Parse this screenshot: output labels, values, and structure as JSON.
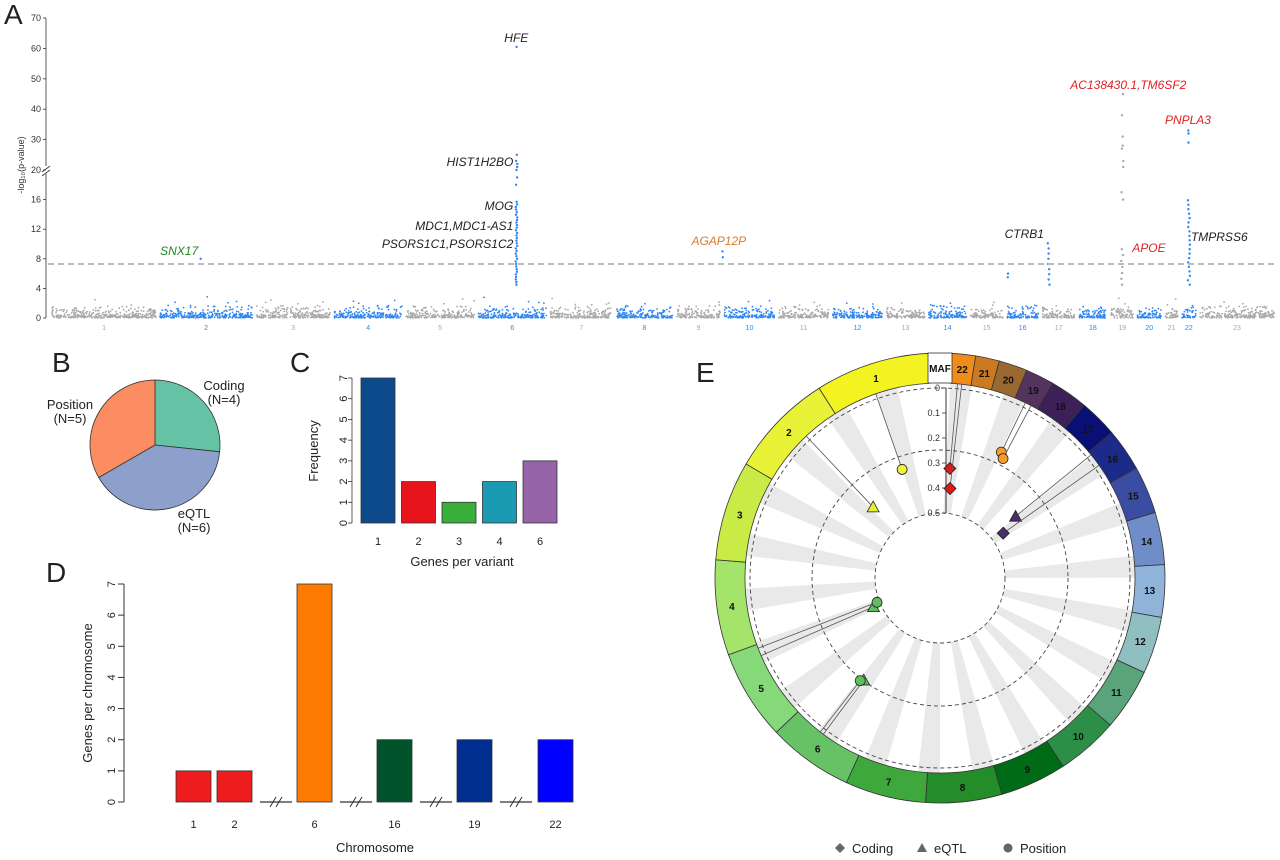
{
  "panels": {
    "a": "A",
    "b": "B",
    "c": "C",
    "d": "D",
    "e": "E"
  },
  "chart_data": [
    {
      "id": "A",
      "type": "scatter",
      "ylabel": "-log₁₀(p-value)",
      "yticks_lower": [
        0,
        4,
        8,
        12,
        16,
        20
      ],
      "yticks_upper": [
        20,
        30,
        40,
        50,
        60,
        70
      ],
      "ylim": [
        0,
        70
      ],
      "significance_threshold": 7.3,
      "chromosomes": [
        "1",
        "2",
        "3",
        "4",
        "5",
        "6",
        "7",
        "8",
        "9",
        "10",
        "11",
        "12",
        "13",
        "14",
        "15",
        "16",
        "17",
        "18",
        "19",
        "20",
        "21",
        "22",
        "23"
      ],
      "colors": {
        "odd": "#a8a8a8",
        "even": "#2f86f0"
      },
      "annotations": [
        {
          "label": "HFE",
          "chr": "6",
          "y": 60.5,
          "color": "#222222"
        },
        {
          "label": "HIST1H2BO",
          "chr": "6",
          "y": 25,
          "color": "#222222"
        },
        {
          "label": "MOG",
          "chr": "6",
          "y": 15,
          "color": "#222222"
        },
        {
          "label": "MDC1,MDC1-AS1",
          "chr": "6",
          "y": 12.5,
          "color": "#222222"
        },
        {
          "label": "PSORS1C1,PSORS1C2",
          "chr": "6",
          "y": 10,
          "color": "#222222"
        },
        {
          "label": "SNX17",
          "chr": "2",
          "y": 8,
          "color": "#1e8a1e"
        },
        {
          "label": "AGAP12P",
          "chr": "10",
          "y": 9,
          "color": "#d97a2b"
        },
        {
          "label": "CTRB1",
          "chr": "16",
          "y": 10,
          "color": "#222222"
        },
        {
          "label": "AC138430.1,TM6SF2",
          "chr": "19",
          "y": 45,
          "color": "#e02020"
        },
        {
          "label": "APOE",
          "chr": "19",
          "y": 8.5,
          "color": "#e02020"
        },
        {
          "label": "PNPLA3",
          "chr": "22",
          "y": 33,
          "color": "#e02020"
        },
        {
          "label": "TMPRSS6",
          "chr": "22",
          "y": 16,
          "color": "#222222"
        }
      ]
    },
    {
      "id": "B",
      "type": "pie",
      "slices": [
        {
          "label": "Coding",
          "count_label": "(N=4)",
          "value": 4,
          "color": "#66c2a5"
        },
        {
          "label": "eQTL",
          "count_label": "(N=6)",
          "value": 6,
          "color": "#8da0cb"
        },
        {
          "label": "Position",
          "count_label": "(N=5)",
          "value": 5,
          "color": "#fc8d62"
        }
      ]
    },
    {
      "id": "C",
      "type": "bar",
      "categories": [
        "1",
        "2",
        "3",
        "4",
        "6"
      ],
      "values": [
        7,
        2,
        1,
        2,
        3
      ],
      "colors": [
        "#0d4a8c",
        "#e8141c",
        "#3aae3a",
        "#1a9bb3",
        "#9663a8"
      ],
      "xlabel": "Genes per variant",
      "ylabel": "Frequency",
      "ylim": [
        0,
        7
      ],
      "yticks": [
        0,
        1,
        2,
        3,
        4,
        5,
        6,
        7
      ]
    },
    {
      "id": "D",
      "type": "bar",
      "categories": [
        "1",
        "2",
        "6",
        "16",
        "19",
        "22"
      ],
      "values": [
        1,
        1,
        7,
        2,
        2,
        2
      ],
      "colors": [
        "#ee1c1c",
        "#ee1c1c",
        "#ff7a00",
        "#00532a",
        "#002e8f",
        "#0000ff"
      ],
      "xlabel": "Chromosome",
      "ylabel": "Genes per chromosome",
      "ylim": [
        0,
        7
      ],
      "yticks": [
        0,
        1,
        2,
        3,
        4,
        5,
        6,
        7
      ],
      "breaks": [
        "2-6",
        "6-16",
        "16-19",
        "19-22"
      ]
    },
    {
      "id": "E",
      "type": "scatter",
      "layout": "circular",
      "axis_label": "MAF",
      "maf_ticks": [
        "0",
        "0.1",
        "0.2",
        "0.3",
        "0.4",
        "0.5"
      ],
      "segments": [
        "1",
        "2",
        "3",
        "4",
        "5",
        "6",
        "7",
        "8",
        "9",
        "10",
        "11",
        "12",
        "13",
        "14",
        "15",
        "16",
        "17",
        "18",
        "19",
        "20",
        "21",
        "22"
      ],
      "legend": [
        {
          "label": "Coding",
          "shape": "diamond"
        },
        {
          "label": "eQTL",
          "shape": "triangle"
        },
        {
          "label": "Position",
          "shape": "circle"
        }
      ],
      "points": [
        {
          "chr": "22",
          "maf": 0.32,
          "shape": "diamond",
          "color": "#e01818"
        },
        {
          "chr": "22",
          "maf": 0.4,
          "shape": "diamond",
          "color": "#e01818"
        },
        {
          "chr": "1",
          "maf": 0.3,
          "shape": "circle",
          "color": "#f2f23a"
        },
        {
          "chr": "2",
          "maf": 0.37,
          "shape": "triangle",
          "color": "#e6f02e"
        },
        {
          "chr": "19",
          "maf": 0.2,
          "shape": "circle",
          "color": "#f59a2e"
        },
        {
          "chr": "19",
          "maf": 0.22,
          "shape": "circle",
          "color": "#f59a2e"
        },
        {
          "chr": "16",
          "maf": 0.37,
          "shape": "triangle",
          "color": "#4a2e6b"
        },
        {
          "chr": "16",
          "maf": 0.45,
          "shape": "diamond",
          "color": "#4a2e6b"
        },
        {
          "chr": "6",
          "maf": 0.25,
          "shape": "triangle",
          "color": "#5fbf5f"
        },
        {
          "chr": "6",
          "maf": 0.24,
          "shape": "circle",
          "color": "#5fbf5f"
        },
        {
          "chr": "5",
          "maf": 0.47,
          "shape": "triangle",
          "color": "#5fbf5f"
        },
        {
          "chr": "5",
          "maf": 0.49,
          "shape": "circle",
          "color": "#5fbf5f"
        }
      ]
    }
  ]
}
